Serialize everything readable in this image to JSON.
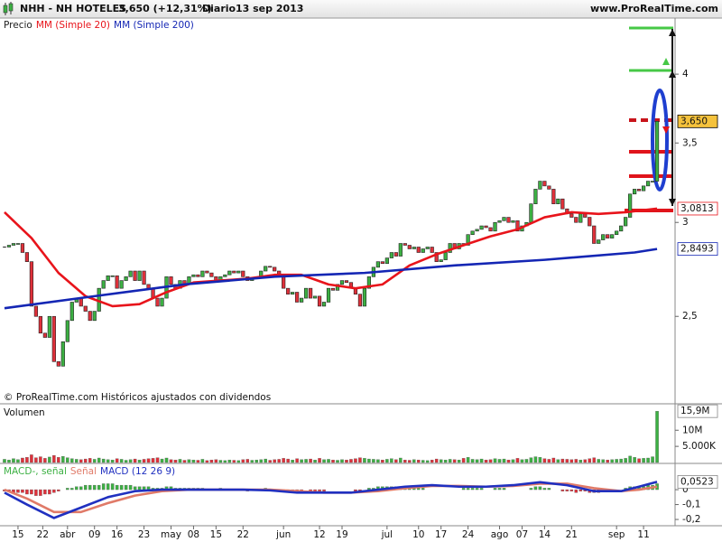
{
  "header": {
    "ticker": "NHH - NH HOTELES",
    "quote": "3,650 (+12,31%)",
    "period": "Diario",
    "date": "13 sep 2013",
    "site": "www.ProRealTime.com"
  },
  "chart_data": [
    {
      "type": "candlestick",
      "footnote": "© ProRealTime.com Históricos ajustados con dividendos",
      "log_scale": true,
      "xlim": [
        -1,
        149
      ],
      "ylim": [
        2.11,
        4.46
      ],
      "yticks": [
        4,
        {
          "value": 3.5,
          "label": "3,5"
        },
        3,
        {
          "value": 2.5,
          "label": "2,5"
        }
      ],
      "price_labels": [
        {
          "value": 3.65,
          "label": "3,650",
          "color": "#000000",
          "background": "#f5c23c"
        },
        {
          "value": 3.0813,
          "label": "3,0813",
          "color": "#e8141b",
          "background": "#ffffff"
        },
        {
          "value": 2.8493,
          "label": "2,8493",
          "color": "#1426b4",
          "background": "#ffffff"
        }
      ],
      "series": [
        {
          "name": "Precio",
          "type": "candlestick",
          "color": "#222222",
          "up_color": "#3cb043",
          "down_color": "#e0303a",
          "values": [
            2.86,
            2.87,
            2.88,
            2.88,
            2.83,
            2.78,
            2.55,
            2.5,
            2.42,
            2.4,
            2.5,
            2.29,
            2.27,
            2.38,
            2.48,
            2.57,
            2.59,
            2.55,
            2.525,
            2.48,
            2.525,
            2.64,
            2.68,
            2.705,
            2.705,
            2.64,
            2.68,
            2.7,
            2.73,
            2.68,
            2.73,
            2.66,
            2.64,
            2.59,
            2.55,
            2.59,
            2.7,
            2.66,
            2.64,
            2.68,
            2.66,
            2.7,
            2.71,
            2.7,
            2.73,
            2.72,
            2.7,
            2.68,
            2.7,
            2.71,
            2.73,
            2.72,
            2.73,
            2.7,
            2.68,
            2.69,
            2.7,
            2.73,
            2.755,
            2.75,
            2.73,
            2.7,
            2.64,
            2.61,
            2.62,
            2.57,
            2.59,
            2.64,
            2.59,
            2.6,
            2.55,
            2.57,
            2.64,
            2.63,
            2.66,
            2.68,
            2.67,
            2.64,
            2.61,
            2.55,
            2.64,
            2.7,
            2.75,
            2.78,
            2.77,
            2.8,
            2.83,
            2.81,
            2.88,
            2.87,
            2.85,
            2.86,
            2.83,
            2.85,
            2.86,
            2.83,
            2.78,
            2.79,
            2.83,
            2.88,
            2.85,
            2.88,
            2.87,
            2.93,
            2.95,
            2.96,
            2.98,
            2.97,
            2.95,
            3.0,
            3.01,
            3.03,
            3.0,
            3.01,
            2.95,
            2.98,
            3.0,
            3.11,
            3.2,
            3.25,
            3.22,
            3.2,
            3.11,
            3.14,
            3.08,
            3.05,
            3.03,
            3.0,
            3.05,
            3.03,
            2.98,
            2.88,
            2.9,
            2.93,
            2.91,
            2.93,
            2.95,
            2.98,
            3.03,
            3.17,
            3.2,
            3.19,
            3.22,
            3.25,
            3.25,
            3.65
          ]
        },
        {
          "name": "MM (Simple 20)",
          "type": "line",
          "color": "#e8141b",
          "x": [
            0,
            6,
            12,
            18,
            24,
            30,
            36,
            42,
            48,
            54,
            60,
            66,
            72,
            78,
            84,
            90,
            96,
            102,
            108,
            114,
            120,
            126,
            132,
            138,
            145
          ],
          "values": [
            3.06,
            2.91,
            2.72,
            2.6,
            2.55,
            2.56,
            2.62,
            2.67,
            2.68,
            2.69,
            2.71,
            2.71,
            2.66,
            2.64,
            2.66,
            2.76,
            2.82,
            2.87,
            2.92,
            2.96,
            3.03,
            3.06,
            3.05,
            3.06,
            3.0813
          ]
        },
        {
          "name": "MM (Simple 200)",
          "type": "line",
          "color": "#1426b4",
          "x": [
            0,
            20,
            40,
            60,
            80,
            100,
            120,
            140,
            145
          ],
          "values": [
            2.54,
            2.6,
            2.66,
            2.7,
            2.72,
            2.76,
            2.79,
            2.83,
            2.8493
          ]
        }
      ]
    },
    {
      "type": "bar",
      "title": "Volumen",
      "color": "#1a8a1a",
      "up_color": "#3cb043",
      "down_color": "#e0303a",
      "xlim": [
        -1,
        149
      ],
      "ylim": [
        0,
        17.35
      ],
      "yticks": [
        {
          "value": 10,
          "label": "10M"
        },
        {
          "value": 5,
          "label": "5.000K"
        }
      ],
      "current": {
        "value": 15.9,
        "label": "15,9M"
      },
      "values": [
        1.0,
        0.8,
        1.2,
        0.9,
        1.4,
        1.6,
        2.4,
        1.5,
        1.8,
        1.3,
        1.7,
        2.2,
        1.6,
        1.9,
        1.5,
        1.2,
        1.0,
        0.9,
        1.1,
        1.3,
        1.0,
        1.4,
        1.1,
        0.9,
        0.8,
        1.2,
        1.0,
        0.7,
        0.9,
        1.1,
        0.8,
        1.0,
        1.2,
        1.3,
        1.5,
        1.1,
        1.4,
        0.9,
        0.8,
        1.0,
        0.7,
        0.9,
        0.8,
        0.7,
        1.0,
        0.6,
        0.8,
        0.9,
        0.7,
        0.6,
        0.8,
        0.7,
        0.6,
        0.9,
        1.0,
        0.7,
        0.8,
        0.9,
        1.1,
        0.7,
        0.9,
        1.0,
        1.3,
        1.1,
        0.8,
        1.2,
        0.9,
        1.0,
        1.1,
        0.8,
        1.3,
        0.9,
        1.0,
        0.8,
        0.7,
        0.9,
        0.8,
        1.0,
        1.2,
        1.5,
        1.3,
        1.1,
        1.0,
        0.9,
        0.8,
        1.0,
        1.2,
        0.9,
        1.4,
        0.8,
        0.7,
        0.9,
        0.8,
        0.7,
        0.6,
        0.8,
        1.1,
        0.9,
        0.8,
        1.0,
        0.9,
        0.8,
        1.3,
        1.6,
        1.0,
        0.9,
        1.1,
        0.8,
        0.9,
        1.2,
        1.0,
        1.1,
        0.8,
        0.9,
        1.3,
        0.9,
        1.0,
        1.5,
        1.8,
        1.6,
        1.2,
        1.0,
        1.4,
        0.9,
        1.1,
        1.0,
        0.9,
        1.0,
        0.8,
        0.9,
        1.2,
        1.5,
        1.0,
        0.9,
        0.8,
        0.9,
        1.0,
        1.1,
        1.3,
        2.0,
        1.6,
        1.2,
        1.3,
        1.4,
        1.8,
        15.9
      ]
    },
    {
      "type": "macd",
      "xlim": [
        -1,
        149
      ],
      "ylim": [
        -0.23,
        0.164
      ],
      "yticks": [
        0,
        {
          "value": -0.1,
          "label": "-0,1"
        },
        {
          "value": -0.2,
          "label": "-0,2"
        }
      ],
      "current": {
        "value": 0.0523,
        "label": "0,0523"
      },
      "xticks": [
        {
          "value": 3,
          "label": "15"
        },
        {
          "value": 8.5,
          "label": "22"
        },
        {
          "value": 14,
          "label": "abr"
        },
        {
          "value": 20,
          "label": "09"
        },
        {
          "value": 25,
          "label": "16"
        },
        {
          "value": 31,
          "label": "23"
        },
        {
          "value": 37,
          "label": "may"
        },
        {
          "value": 42,
          "label": "08"
        },
        {
          "value": 47,
          "label": "15"
        },
        {
          "value": 53,
          "label": "22"
        },
        {
          "value": 62,
          "label": "jun"
        },
        {
          "value": 70,
          "label": "12"
        },
        {
          "value": 75,
          "label": "19"
        },
        {
          "value": 85,
          "label": "jul"
        },
        {
          "value": 92,
          "label": "10"
        },
        {
          "value": 97,
          "label": "17"
        },
        {
          "value": 103,
          "label": "24"
        },
        {
          "value": 110,
          "label": "ago"
        },
        {
          "value": 115,
          "label": "07"
        },
        {
          "value": 120,
          "label": "14"
        },
        {
          "value": 126,
          "label": "21"
        },
        {
          "value": 136,
          "label": "sep"
        },
        {
          "value": 142,
          "label": "11"
        }
      ],
      "series": [
        {
          "name": "MACD-, señal",
          "type": "bar",
          "color": "#3cb043",
          "up_color": "#3cb043",
          "down_color": "#e0303a",
          "values": [
            -0.01,
            -0.01,
            -0.02,
            -0.02,
            -0.02,
            -0.03,
            -0.03,
            -0.04,
            -0.04,
            -0.03,
            -0.03,
            -0.02,
            -0.01,
            0.0,
            0.01,
            0.01,
            0.02,
            0.02,
            0.03,
            0.03,
            0.03,
            0.03,
            0.04,
            0.04,
            0.04,
            0.03,
            0.03,
            0.03,
            0.03,
            0.02,
            0.02,
            0.02,
            0.02,
            0.01,
            0.01,
            0.01,
            0.02,
            0.02,
            0.01,
            0.01,
            0.01,
            0.01,
            0.01,
            0.01,
            0.01,
            0.0,
            0.0,
            0.0,
            0.01,
            0.0,
            0.0,
            0.0,
            0.0,
            0.0,
            -0.01,
            0.0,
            0.0,
            0.0,
            0.01,
            0.0,
            -0.01,
            -0.01,
            -0.01,
            -0.02,
            -0.01,
            -0.01,
            -0.01,
            0.0,
            -0.01,
            -0.01,
            -0.01,
            -0.01,
            0.0,
            0.0,
            0.0,
            0.0,
            0.0,
            0.0,
            -0.01,
            -0.01,
            0.0,
            0.01,
            0.01,
            0.02,
            0.02,
            0.02,
            0.02,
            0.02,
            0.02,
            0.02,
            0.01,
            0.01,
            0.01,
            0.01,
            0.0,
            0.0,
            0.0,
            0.0,
            0.0,
            0.0,
            0.0,
            0.0,
            0.01,
            0.01,
            0.01,
            0.01,
            0.01,
            0.0,
            0.0,
            0.01,
            0.01,
            0.01,
            0.0,
            0.0,
            0.0,
            0.0,
            0.0,
            0.01,
            0.02,
            0.02,
            0.01,
            0.01,
            0.0,
            0.0,
            -0.01,
            -0.01,
            -0.01,
            -0.02,
            -0.01,
            -0.01,
            -0.02,
            -0.02,
            -0.02,
            -0.01,
            -0.01,
            -0.01,
            0.0,
            0.0,
            0.01,
            0.02,
            0.02,
            0.02,
            0.02,
            0.03,
            0.03,
            0.04
          ]
        },
        {
          "name": "Señal",
          "type": "line",
          "color": "#e07a68",
          "x": [
            0,
            5,
            11,
            17,
            23,
            29,
            35,
            41,
            47,
            53,
            59,
            65,
            71,
            77,
            83,
            89,
            95,
            101,
            107,
            113,
            119,
            125,
            131,
            137,
            141,
            145
          ],
          "values": [
            0.0,
            -0.06,
            -0.15,
            -0.15,
            -0.09,
            -0.04,
            -0.01,
            0.0,
            0.0,
            0.0,
            0.0,
            -0.01,
            -0.02,
            -0.02,
            -0.01,
            0.01,
            0.025,
            0.025,
            0.02,
            0.025,
            0.04,
            0.04,
            0.01,
            -0.01,
            0.0,
            0.02
          ]
        },
        {
          "name": "MACD (12 26 9)",
          "type": "line",
          "color": "#2030c0",
          "x": [
            0,
            5,
            11,
            17,
            23,
            29,
            35,
            41,
            47,
            53,
            59,
            65,
            71,
            77,
            83,
            89,
            95,
            101,
            107,
            113,
            119,
            125,
            131,
            137,
            141,
            145
          ],
          "values": [
            -0.02,
            -0.1,
            -0.19,
            -0.12,
            -0.05,
            -0.01,
            0.0,
            0.0,
            0.0,
            0.0,
            -0.005,
            -0.02,
            -0.02,
            -0.02,
            0.0,
            0.02,
            0.03,
            0.02,
            0.02,
            0.03,
            0.05,
            0.03,
            -0.01,
            -0.01,
            0.02,
            0.0523
          ]
        }
      ]
    }
  ]
}
